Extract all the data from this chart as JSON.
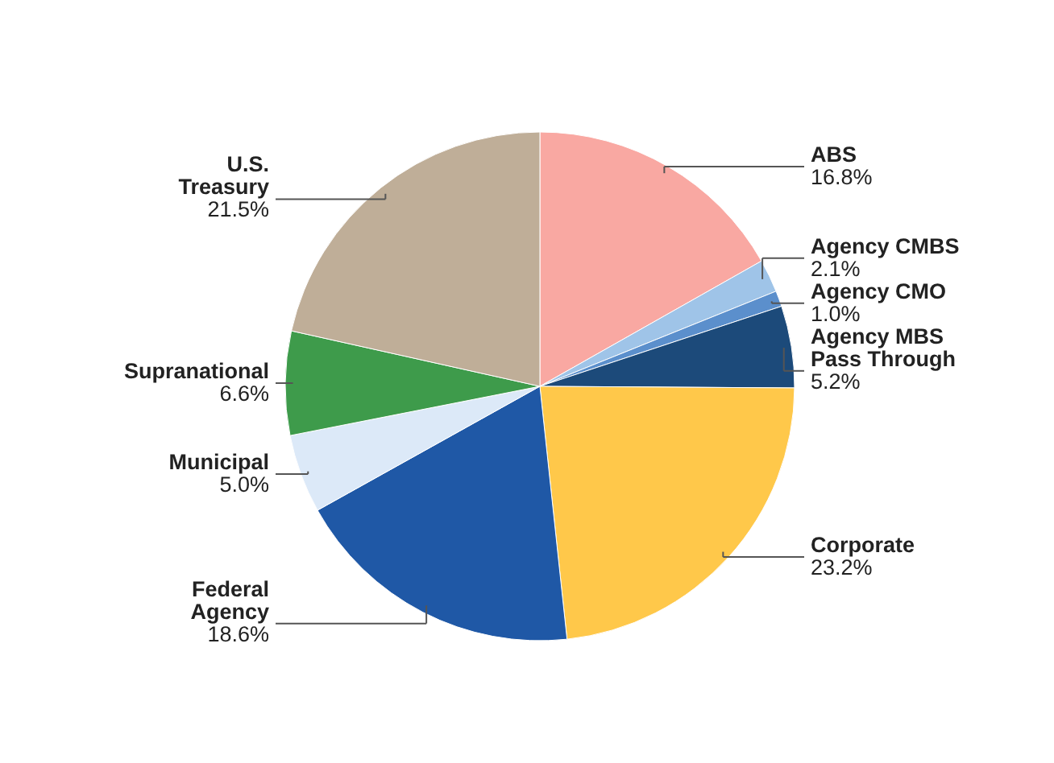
{
  "chart_data": {
    "type": "pie",
    "categories": [
      "ABS",
      "Agency CMBS",
      "Agency CMO",
      "Agency MBS Pass Through",
      "Corporate",
      "Federal Agency",
      "Municipal",
      "Supranational",
      "U.S. Treasury"
    ],
    "values": [
      16.8,
      2.1,
      1.0,
      5.2,
      23.2,
      18.6,
      5.0,
      6.6,
      21.5
    ],
    "value_labels": [
      "16.8%",
      "2.1%",
      "1.0%",
      "5.2%",
      "23.2%",
      "18.6%",
      "5.0%",
      "6.6%",
      "21.5%"
    ],
    "colors": [
      "#f9a8a2",
      "#9fc4e8",
      "#5b8fcc",
      "#1c4a7a",
      "#ffc84a",
      "#1f58a6",
      "#dce9f8",
      "#3e9b4b",
      "#bfae98"
    ]
  }
}
